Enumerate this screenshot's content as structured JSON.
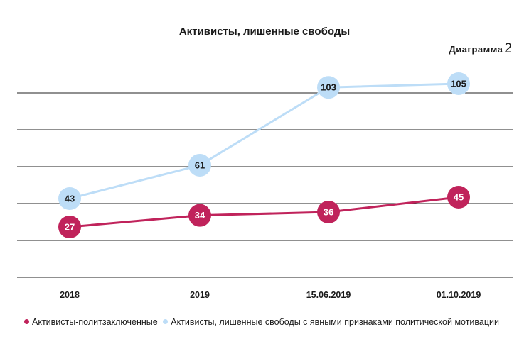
{
  "chart_data": {
    "type": "line",
    "title": "Активисты, лишенные свободы",
    "diagram_label": "Диаграмма",
    "diagram_number": "2",
    "categories": [
      "2018",
      "2019",
      "15.06.2019",
      "01.10.2019"
    ],
    "series": [
      {
        "name": "Активисты-политзаключенные",
        "values": [
          27,
          34,
          36,
          45
        ],
        "color": "#c0235b",
        "text_color": "#ffffff"
      },
      {
        "name": "Активисты, лишенные свободы с явными признаками политической мотивации",
        "values": [
          43,
          61,
          103,
          105
        ],
        "color": "#bdddf7",
        "text_color": "#1a1a1a"
      }
    ],
    "grid": true,
    "legend_position": "bottom-left"
  }
}
